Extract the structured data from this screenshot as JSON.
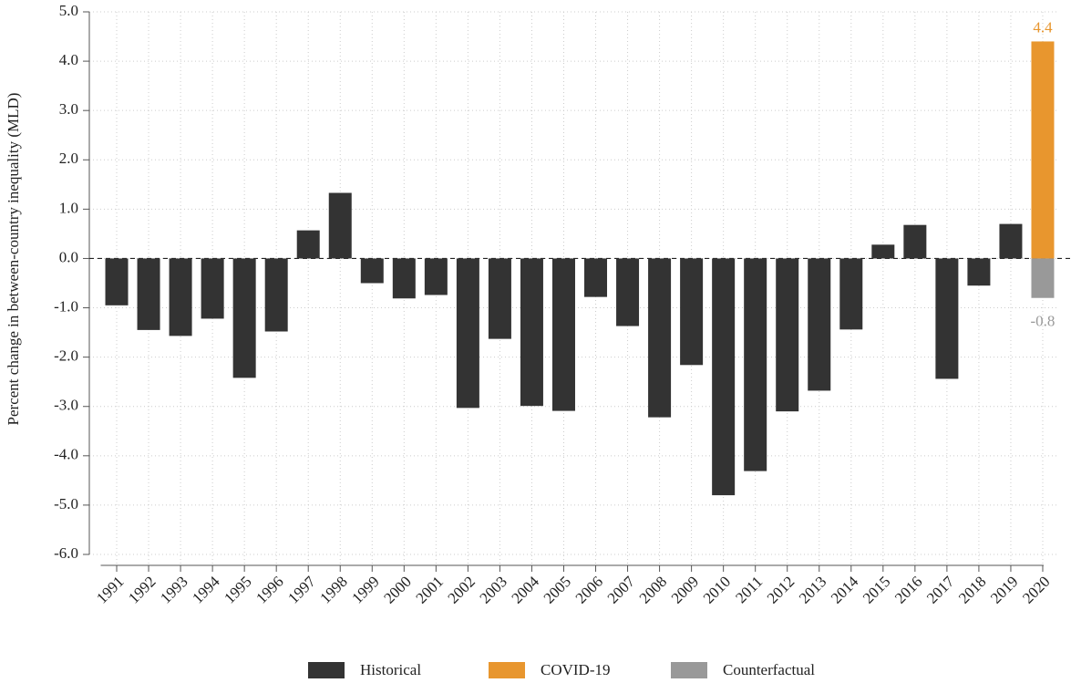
{
  "chart_data": {
    "type": "bar",
    "y_label": "Percent change in between-country inequality (MLD)",
    "categories": [
      "1991",
      "1992",
      "1993",
      "1994",
      "1995",
      "1996",
      "1997",
      "1998",
      "1999",
      "2000",
      "2001",
      "2002",
      "2003",
      "2004",
      "2005",
      "2006",
      "2007",
      "2008",
      "2009",
      "2010",
      "2011",
      "2012",
      "2013",
      "2014",
      "2015",
      "2016",
      "2017",
      "2018",
      "2019",
      "2020"
    ],
    "series": [
      {
        "name": "Historical",
        "color": "#333333",
        "values": [
          -0.95,
          -1.45,
          -1.57,
          -1.22,
          -2.42,
          -1.48,
          0.57,
          1.33,
          -0.5,
          -0.81,
          -0.74,
          -3.03,
          -1.63,
          -2.99,
          -3.09,
          -0.78,
          -1.37,
          -3.22,
          -2.16,
          -4.8,
          -4.31,
          -3.1,
          -2.68,
          -1.44,
          0.28,
          0.68,
          -2.44,
          -0.55,
          0.7,
          null
        ]
      },
      {
        "name": "COVID-19",
        "color": "#e8962e",
        "show_values": true,
        "values": [
          null,
          null,
          null,
          null,
          null,
          null,
          null,
          null,
          null,
          null,
          null,
          null,
          null,
          null,
          null,
          null,
          null,
          null,
          null,
          null,
          null,
          null,
          null,
          null,
          null,
          null,
          null,
          null,
          null,
          4.4
        ]
      },
      {
        "name": "Counterfactual",
        "color": "#999999",
        "show_values": true,
        "values": [
          null,
          null,
          null,
          null,
          null,
          null,
          null,
          null,
          null,
          null,
          null,
          null,
          null,
          null,
          null,
          null,
          null,
          null,
          null,
          null,
          null,
          null,
          null,
          null,
          null,
          null,
          null,
          null,
          null,
          -0.8
        ]
      }
    ],
    "ylim": [
      -6,
      5
    ],
    "yticks": [
      {
        "value": -6,
        "label": "-6.0"
      },
      {
        "value": -5,
        "label": "-5.0"
      },
      {
        "value": -4,
        "label": "-4.0"
      },
      {
        "value": -3,
        "label": "-3.0"
      },
      {
        "value": -2,
        "label": "-2.0"
      },
      {
        "value": -1,
        "label": "-1.0"
      },
      {
        "value": 0,
        "label": "0.0"
      },
      {
        "value": 1,
        "label": "1.0"
      },
      {
        "value": 2,
        "label": "2.0"
      },
      {
        "value": 3,
        "label": "3.0"
      },
      {
        "value": 4,
        "label": "4.0"
      },
      {
        "value": 5,
        "label": "5.0"
      }
    ],
    "grid": true,
    "legend": "bottom"
  }
}
